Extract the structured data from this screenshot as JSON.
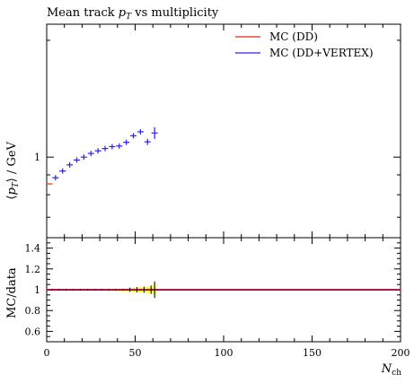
{
  "chart_data": [
    {
      "type": "scatter",
      "title": "Mean track p_T vs multiplicity",
      "title_parts": {
        "prefix": "Mean track ",
        "var": "p",
        "sub": "T",
        "suffix": " vs multiplicity"
      },
      "ylabel": "⟨p_T⟩ / GeV",
      "ylabel_parts": {
        "open": "⟨",
        "var": "p",
        "sub": "T",
        "close": "⟩ / GeV"
      },
      "xlim": [
        0,
        200
      ],
      "ylim": [
        0.62,
        2.2
      ],
      "yscale": "log",
      "yticks": [
        1
      ],
      "ytick_labels": [
        "1"
      ],
      "legend_position": "top-right",
      "series": [
        {
          "name": "MC (DD)",
          "color": "#e8231b",
          "points": [
            [
              1.5,
              0.853
            ]
          ]
        },
        {
          "name": "MC (DD+VERTEX)",
          "color": "#2b1ff0",
          "points": [
            [
              5,
              0.885,
              0.003
            ],
            [
              9,
              0.921,
              0.003
            ],
            [
              13,
              0.955,
              0.003
            ],
            [
              17,
              0.983,
              0.003
            ],
            [
              21,
              1.0,
              0.004
            ],
            [
              25,
              1.022,
              0.004
            ],
            [
              29,
              1.038,
              0.005
            ],
            [
              33,
              1.052,
              0.005
            ],
            [
              37,
              1.064,
              0.006
            ],
            [
              41,
              1.068,
              0.008
            ],
            [
              45,
              1.092,
              0.01
            ],
            [
              49,
              1.135,
              0.012
            ],
            [
              53,
              1.162,
              0.015
            ],
            [
              57,
              1.095,
              0.02
            ],
            [
              61,
              1.154,
              0.04
            ]
          ]
        }
      ]
    },
    {
      "type": "line",
      "ylabel": "MC/data",
      "xlabel": "N_ch",
      "xlabel_parts": {
        "var": "N",
        "sub": "ch"
      },
      "xlim": [
        0,
        200
      ],
      "ylim": [
        0.5,
        1.5
      ],
      "xticks": [
        0,
        50,
        100,
        150,
        200
      ],
      "xtick_labels": [
        "0",
        "50",
        "100",
        "150",
        "200"
      ],
      "yticks": [
        0.6,
        0.8,
        1,
        1.2,
        1.4
      ],
      "ytick_labels": [
        "0.6",
        "0.8",
        "1",
        "1.2",
        "1.4"
      ],
      "band_color": "#ffff33",
      "series": [
        {
          "name": "MC (DD)",
          "color": "#e8231b",
          "y": 1.0
        },
        {
          "name": "MC (DD+VERTEX)",
          "color": "#2b1ff0",
          "y": 1.0
        }
      ],
      "uncertainty_band": [
        [
          3,
          0.004
        ],
        [
          7,
          0.004
        ],
        [
          11,
          0.005
        ],
        [
          15,
          0.005
        ],
        [
          19,
          0.006
        ],
        [
          23,
          0.006
        ],
        [
          27,
          0.007
        ],
        [
          31,
          0.008
        ],
        [
          35,
          0.009
        ],
        [
          39,
          0.011
        ],
        [
          43,
          0.013
        ],
        [
          47,
          0.016
        ],
        [
          51,
          0.02
        ],
        [
          55,
          0.025
        ],
        [
          59,
          0.035
        ],
        [
          62,
          0.06
        ]
      ],
      "ratio_error_bars": [
        [
          47,
          0.02
        ],
        [
          51,
          0.025
        ],
        [
          55,
          0.03
        ],
        [
          59,
          0.04
        ],
        [
          61,
          0.08
        ]
      ]
    }
  ]
}
